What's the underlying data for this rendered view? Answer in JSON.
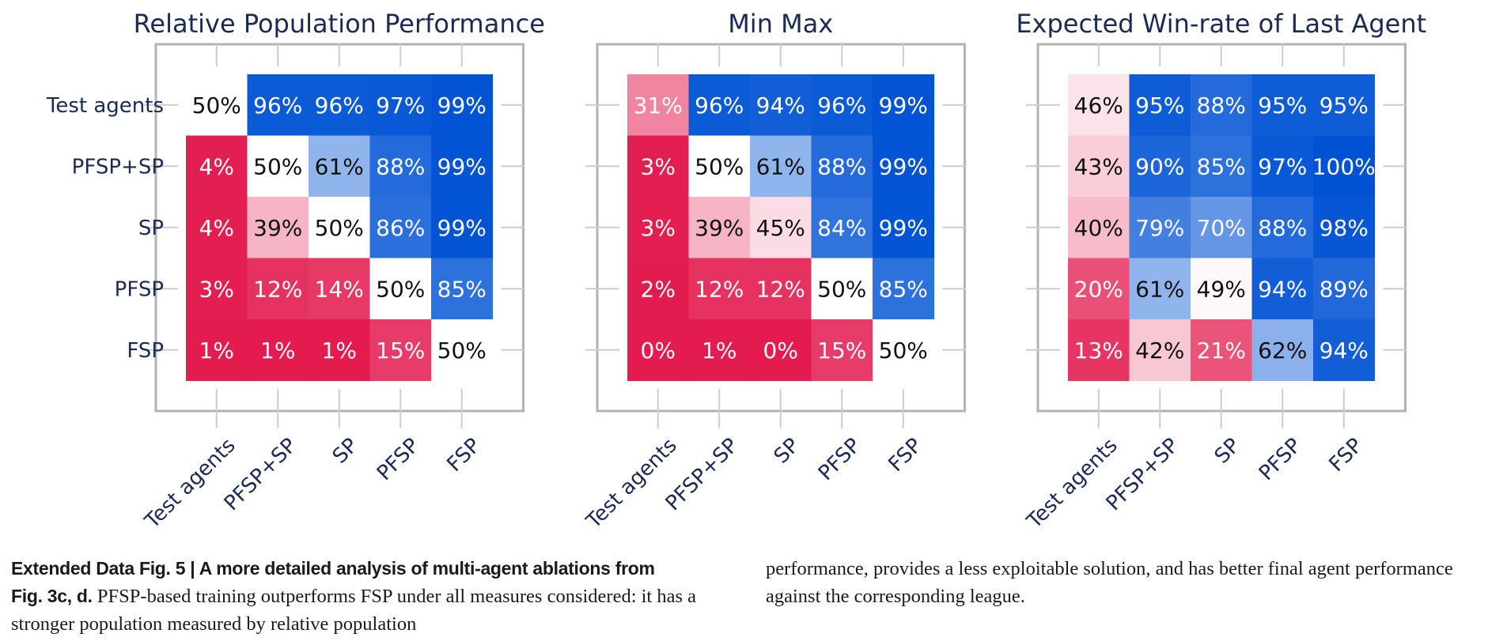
{
  "chart_data": [
    {
      "type": "heatmap",
      "title": "Relative Population Performance",
      "rows": [
        "Test agents",
        "PFSP+SP",
        "SP",
        "PFSP",
        "FSP"
      ],
      "columns": [
        "Test agents",
        "PFSP+SP",
        "SP",
        "PFSP",
        "FSP"
      ],
      "values": [
        [
          50,
          96,
          96,
          97,
          99
        ],
        [
          4,
          50,
          61,
          88,
          99
        ],
        [
          4,
          39,
          50,
          86,
          99
        ],
        [
          3,
          12,
          14,
          50,
          85
        ],
        [
          1,
          1,
          1,
          15,
          50
        ]
      ],
      "labels": [
        [
          "50%",
          "96%",
          "96%",
          "97%",
          "99%"
        ],
        [
          "4%",
          "50%",
          "61%",
          "88%",
          "99%"
        ],
        [
          "4%",
          "39%",
          "50%",
          "86%",
          "99%"
        ],
        [
          "3%",
          "12%",
          "14%",
          "50%",
          "85%"
        ],
        [
          "1%",
          "1%",
          "1%",
          "15%",
          "50%"
        ]
      ],
      "colors": {
        "low": "#e31b4f",
        "mid": "#ffffff",
        "high": "#0052d4"
      },
      "grid": false
    },
    {
      "type": "heatmap",
      "title": "Min Max",
      "rows": [
        "Test agents",
        "PFSP+SP",
        "SP",
        "PFSP",
        "FSP"
      ],
      "columns": [
        "Test agents",
        "PFSP+SP",
        "SP",
        "PFSP",
        "FSP"
      ],
      "values": [
        [
          31,
          96,
          94,
          96,
          99
        ],
        [
          3,
          50,
          61,
          88,
          99
        ],
        [
          3,
          39,
          45,
          84,
          99
        ],
        [
          2,
          12,
          12,
          50,
          85
        ],
        [
          0,
          1,
          0,
          15,
          50
        ]
      ],
      "labels": [
        [
          "31%",
          "96%",
          "94%",
          "96%",
          "99%"
        ],
        [
          "3%",
          "50%",
          "61%",
          "88%",
          "99%"
        ],
        [
          "3%",
          "39%",
          "45%",
          "84%",
          "99%"
        ],
        [
          "2%",
          "12%",
          "12%",
          "50%",
          "85%"
        ],
        [
          "0%",
          "1%",
          "0%",
          "15%",
          "50%"
        ]
      ],
      "colors": {
        "low": "#e31b4f",
        "mid": "#ffffff",
        "high": "#0052d4"
      },
      "grid": false
    },
    {
      "type": "heatmap",
      "title": "Expected Win-rate of Last Agent",
      "rows": [
        "Test agents",
        "PFSP+SP",
        "SP",
        "PFSP",
        "FSP"
      ],
      "columns": [
        "Test agents",
        "PFSP+SP",
        "SP",
        "PFSP",
        "FSP"
      ],
      "values": [
        [
          46,
          95,
          88,
          95,
          95
        ],
        [
          43,
          90,
          85,
          97,
          100
        ],
        [
          40,
          79,
          70,
          88,
          98
        ],
        [
          20,
          61,
          49,
          94,
          89
        ],
        [
          13,
          42,
          21,
          62,
          94
        ]
      ],
      "labels": [
        [
          "46%",
          "95%",
          "88%",
          "95%",
          "95%"
        ],
        [
          "43%",
          "90%",
          "85%",
          "97%",
          "100%"
        ],
        [
          "40%",
          "79%",
          "70%",
          "88%",
          "98%"
        ],
        [
          "20%",
          "61%",
          "49%",
          "94%",
          "89%"
        ],
        [
          "13%",
          "42%",
          "21%",
          "62%",
          "94%"
        ]
      ],
      "colors": {
        "low": "#e31b4f",
        "mid": "#ffffff",
        "high": "#0052d4"
      },
      "grid": false
    }
  ],
  "caption": {
    "figure_label": "Extended Data Fig. 5 | ",
    "heading": "A more detailed analysis of multi-agent ablations from",
    "heading_line2": "Fig. 3c, d.",
    "body_left": " PFSP-based training outperforms FSP under all measures considered: it has a stronger population measured by relative population",
    "body_right": "performance, provides a less exploitable solution, and has better final agent performance against the corresponding league."
  }
}
